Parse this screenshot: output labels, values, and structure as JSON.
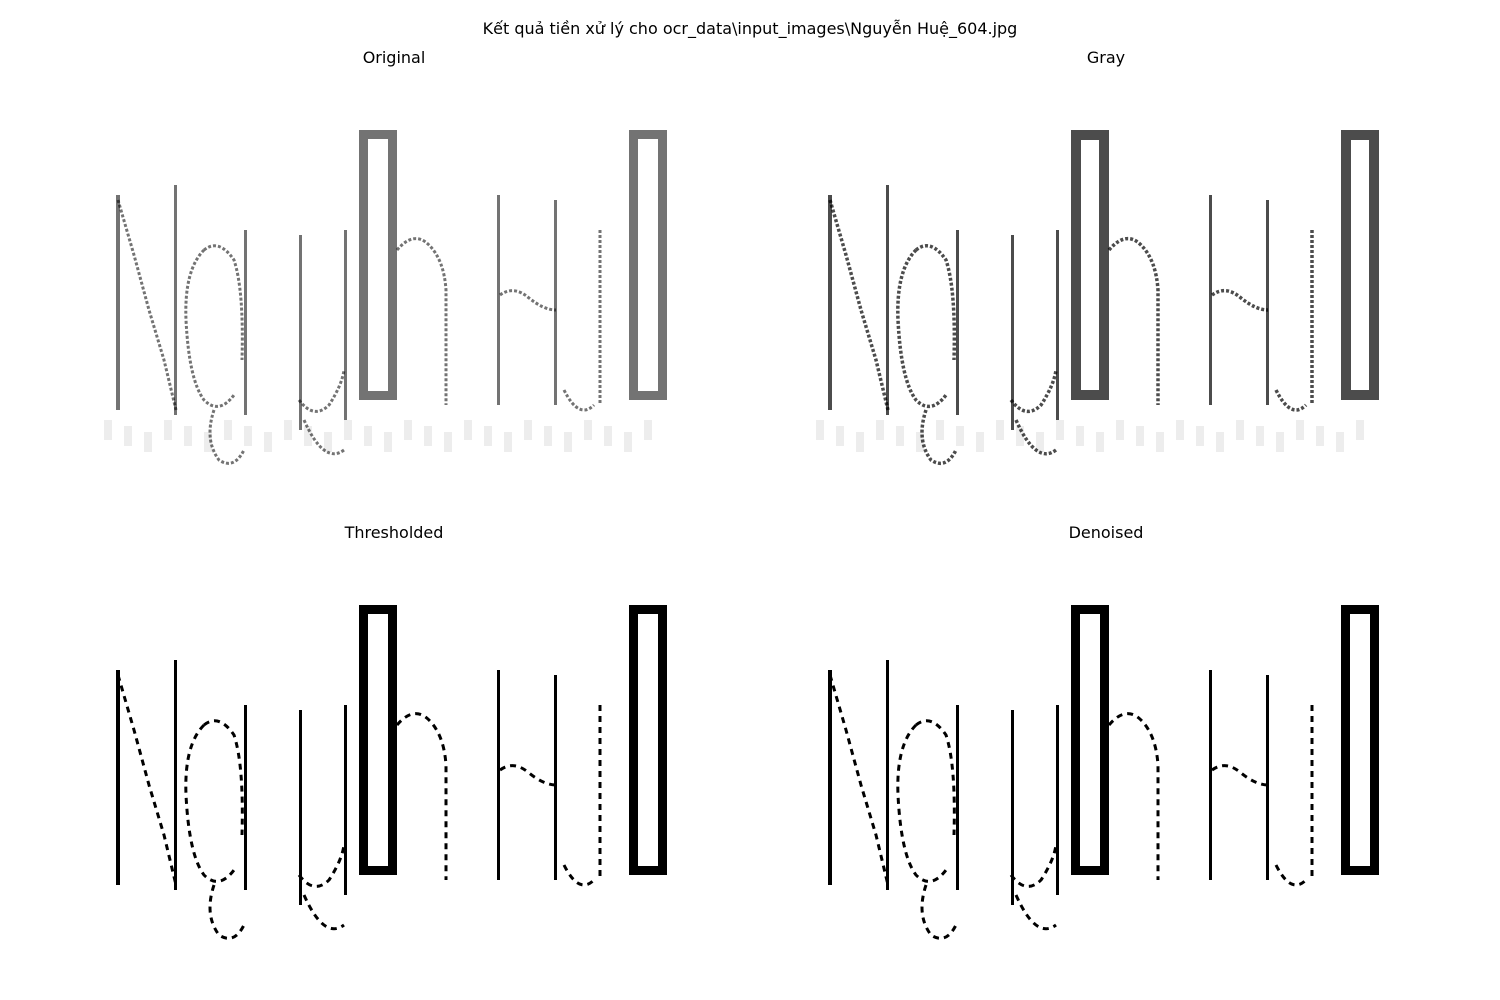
{
  "figure": {
    "suptitle": "Kết quả tiền xử lý cho ocr_data\\input_images\\Nguyễn Huệ_604.jpg",
    "panels": [
      {
        "title": "Original",
        "style": "soft"
      },
      {
        "title": "Gray",
        "style": "gray"
      },
      {
        "title": "Thresholded",
        "style": "binary"
      },
      {
        "title": "Denoised",
        "style": "binary"
      }
    ],
    "ink_color": "#000000",
    "background_color": "#ffffff"
  }
}
